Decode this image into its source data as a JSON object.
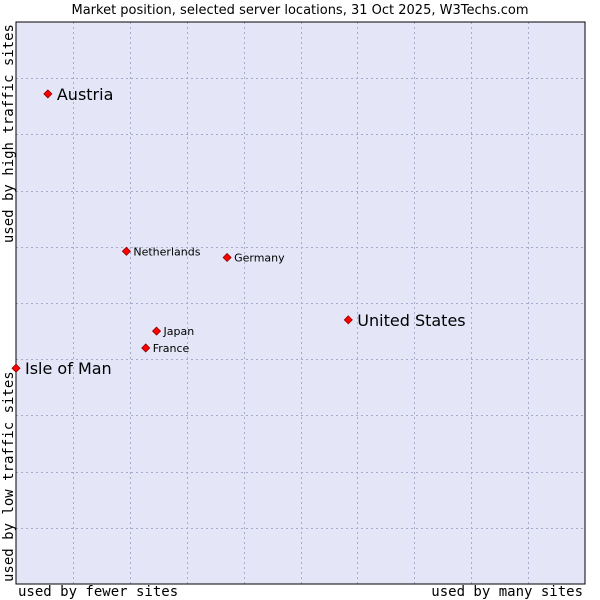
{
  "chart_data": {
    "type": "scatter",
    "title": "Market position, selected server locations, 31 Oct 2025, W3Techs.com",
    "xlabel_left": "used by fewer sites",
    "xlabel_right": "used by many sites",
    "ylabel_bottom": "used by low traffic sites",
    "ylabel_top": "used by high traffic sites",
    "xlim": [
      0,
      10
    ],
    "ylim": [
      0,
      10
    ],
    "grid": true,
    "colors": {
      "plot_bg": "#e4e6f8",
      "grid": "#a8aacb",
      "point": "#ff0000",
      "point_edge": "#8b0000"
    },
    "points": [
      {
        "name": "Austria",
        "x": 0.56,
        "y": 8.72,
        "emphasis": "large"
      },
      {
        "name": "Netherlands",
        "x": 1.94,
        "y": 5.92,
        "emphasis": "small"
      },
      {
        "name": "Germany",
        "x": 3.71,
        "y": 5.81,
        "emphasis": "small"
      },
      {
        "name": "United States",
        "x": 5.84,
        "y": 4.7,
        "emphasis": "large"
      },
      {
        "name": "Japan",
        "x": 2.47,
        "y": 4.5,
        "emphasis": "small"
      },
      {
        "name": "France",
        "x": 2.28,
        "y": 4.2,
        "emphasis": "small"
      },
      {
        "name": "Isle of Man",
        "x": 0.0,
        "y": 3.84,
        "emphasis": "large"
      }
    ]
  }
}
